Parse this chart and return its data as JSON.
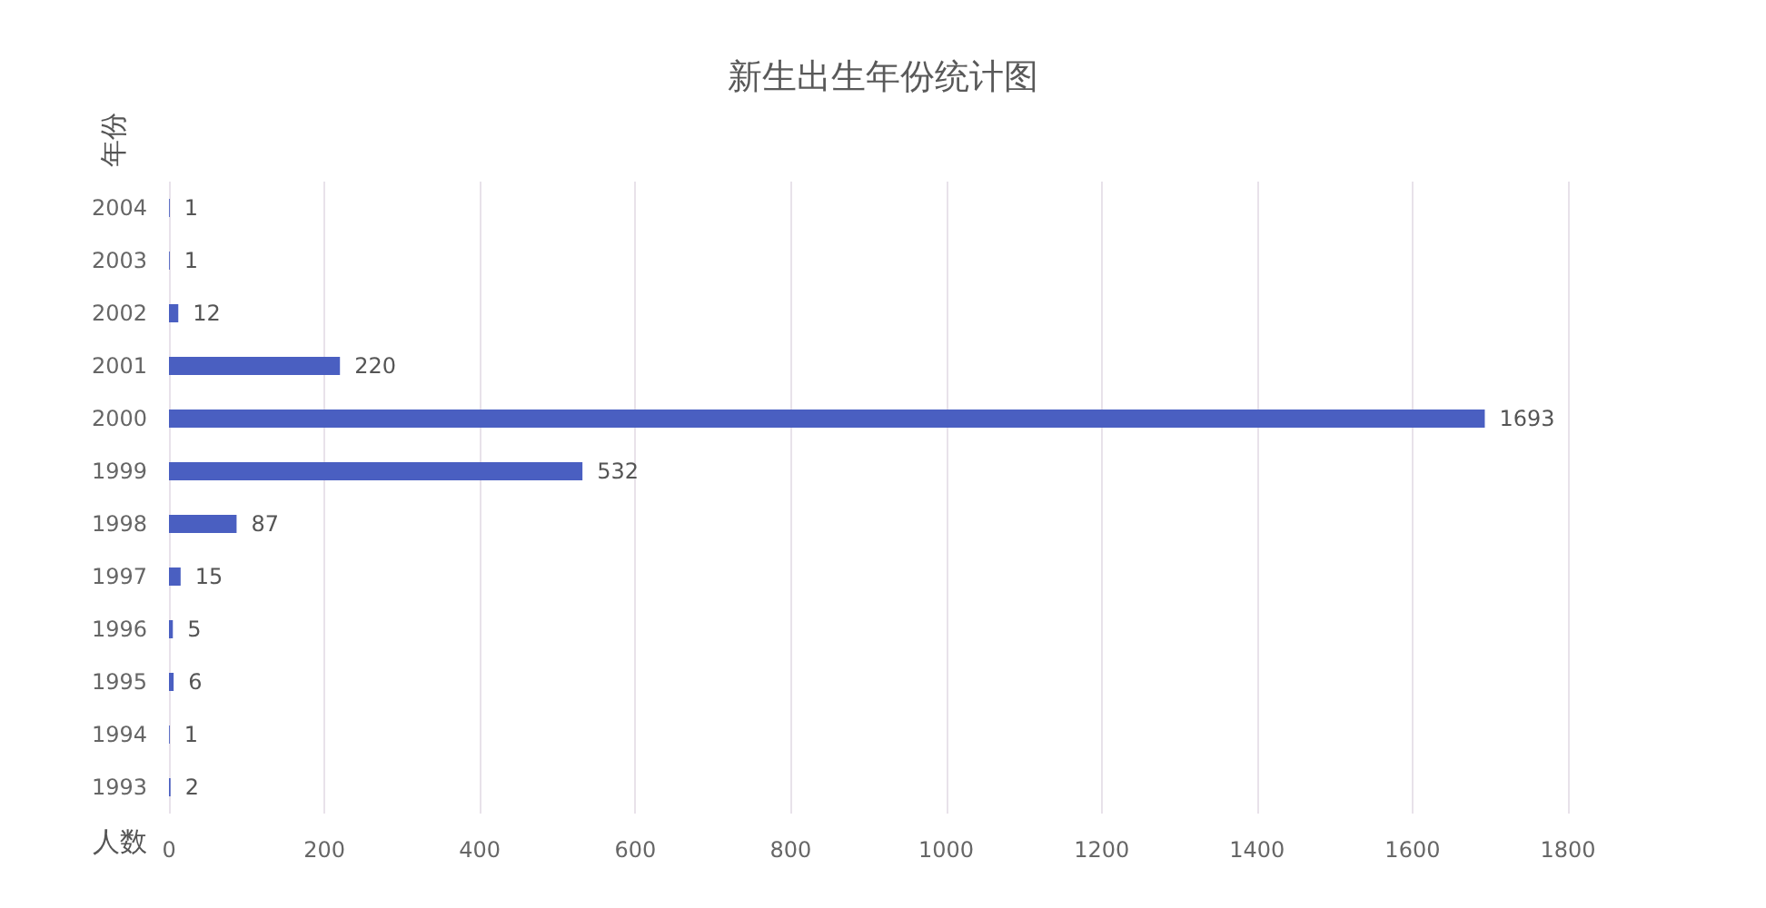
{
  "chart_data": {
    "type": "bar",
    "orientation": "horizontal",
    "title": "新生出生年份统计图",
    "xlabel": "人数",
    "ylabel": "年份",
    "categories": [
      "2004",
      "2003",
      "2002",
      "2001",
      "2000",
      "1999",
      "1998",
      "1997",
      "1996",
      "1995",
      "1994",
      "1993"
    ],
    "values": [
      1,
      1,
      12,
      220,
      1693,
      532,
      87,
      15,
      5,
      6,
      1,
      2
    ],
    "color": "#4a5fc1",
    "xlim": [
      0,
      1800
    ],
    "xticks": [
      0,
      200,
      400,
      600,
      800,
      1000,
      1200,
      1400,
      1600,
      1800
    ],
    "grid": "x",
    "data_labels": true
  }
}
